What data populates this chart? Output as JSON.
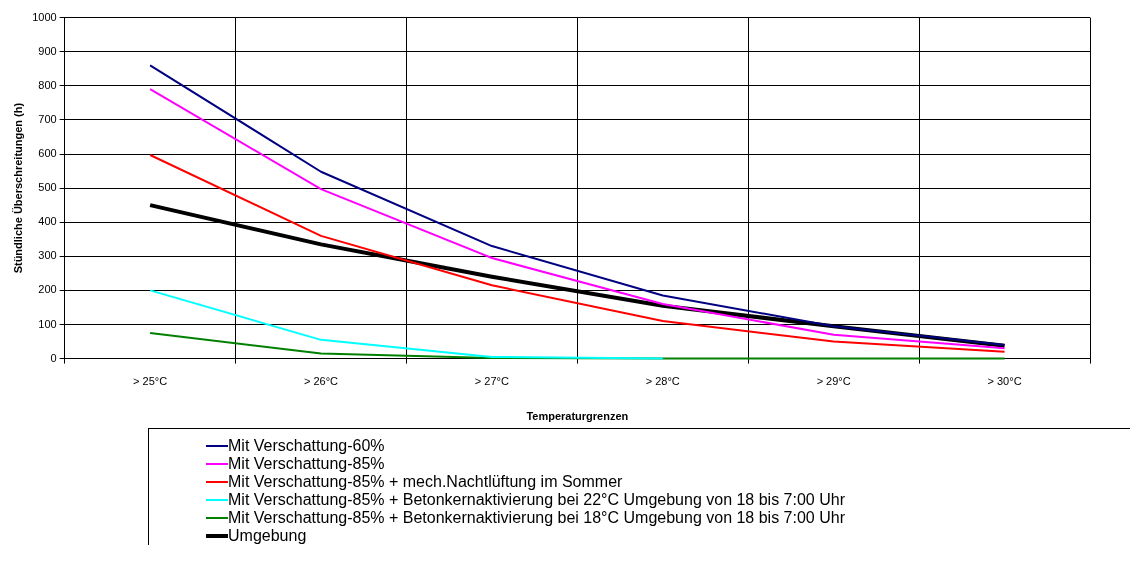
{
  "chart_data": {
    "type": "line",
    "xlabel": "Temperaturgrenzen",
    "ylabel": "Stündliche Überschreitungen (h)",
    "categories": [
      "> 25°C",
      "> 26°C",
      "> 27°C",
      "> 28°C",
      "> 29°C",
      "> 30°C"
    ],
    "series": [
      {
        "name": "Mit Verschattung-60%",
        "color": "#000080",
        "values": [
          860,
          548,
          330,
          185,
          95,
          40
        ]
      },
      {
        "name": "Mit Verschattung-85%",
        "color": "#ff00ff",
        "values": [
          790,
          497,
          295,
          160,
          70,
          30
        ]
      },
      {
        "name": "Mit Verschattung-85% + mech.Nachtlüftung im Sommer",
        "color": "#ff0000",
        "values": [
          597,
          360,
          215,
          110,
          50,
          20
        ]
      },
      {
        "name": "Mit Verschattung-85% + Betonkernaktivierung bei 22°C Umgebung von 18 bis 7:00 Uhr",
        "color": "#00ffff",
        "values": [
          200,
          55,
          5,
          0,
          null,
          null
        ]
      },
      {
        "name": "Mit Verschattung-85% + Betonkernaktivierung bei 18°C Umgebung von 18 bis 7:00 Uhr",
        "color": "#008000",
        "values": [
          75,
          15,
          2,
          0,
          0,
          0
        ]
      },
      {
        "name": "Umgebung",
        "color": "#000000",
        "values": [
          450,
          335,
          240,
          155,
          95,
          38
        ]
      }
    ],
    "ylim": [
      0,
      1000
    ],
    "yticks": [
      0,
      100,
      200,
      300,
      400,
      500,
      600,
      700,
      800,
      900,
      1000
    ],
    "grid": true,
    "legend": "bottom",
    "marker": "none",
    "line_style": "solid"
  }
}
